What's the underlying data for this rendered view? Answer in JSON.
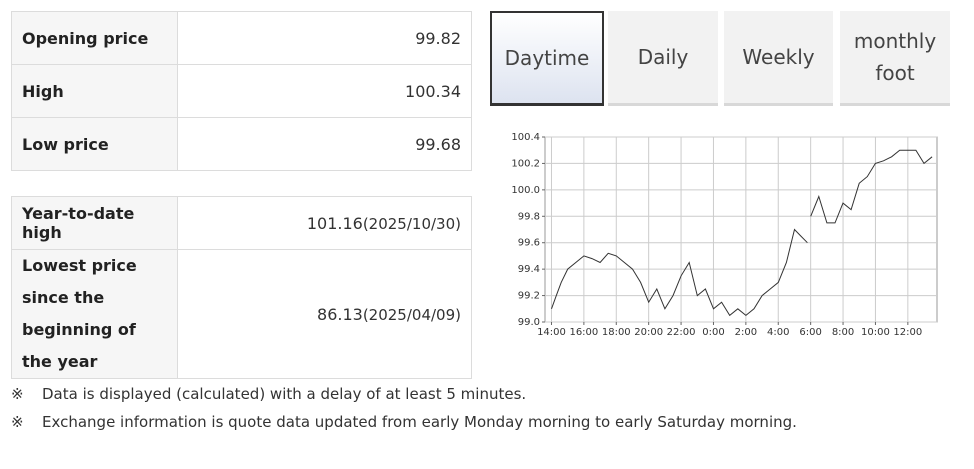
{
  "price_table": {
    "rows": [
      [
        "Opening price",
        "99.82"
      ],
      [
        "High",
        "100.34"
      ],
      [
        "Low price",
        "99.68"
      ]
    ]
  },
  "range_table": {
    "rows": [
      {
        "label": "Year-to-date high",
        "value": "101.16",
        "date": "(2025/10/30)"
      },
      {
        "label": "Lowest price since the beginning of the year",
        "value": "86.13",
        "date": "(2025/04/09)"
      }
    ]
  },
  "tabs": [
    "Daytime",
    "Daily",
    "Weekly",
    "monthly foot"
  ],
  "notes": [
    {
      "mark": "※",
      "text": "Data is displayed (calculated) with a delay of at least 5 minutes."
    },
    {
      "mark": "※",
      "text": "Exchange information is quote data updated from early Monday morning to early Saturday morning."
    }
  ],
  "chart_data": {
    "type": "line",
    "color": "#333333",
    "grid": true,
    "x": [
      0,
      0.3,
      0.6,
      1,
      1.5,
      2,
      2.5,
      3,
      3.5,
      4,
      4.5,
      5,
      5.5,
      6,
      6.5,
      7,
      7.5,
      8,
      8.5,
      9,
      9.5,
      10,
      10.5,
      11,
      11.5,
      12,
      12.5,
      13,
      13.5,
      14,
      14.5,
      15,
      15.4,
      15.8,
      15.9,
      16,
      16.5,
      17,
      17.5,
      18,
      18.5,
      19,
      19.5,
      20,
      20.5,
      21,
      21.5,
      22,
      22.5,
      23,
      23.5
    ],
    "values": [
      99.1,
      99.2,
      99.3,
      99.4,
      99.45,
      99.5,
      99.48,
      99.45,
      99.52,
      99.5,
      99.45,
      99.4,
      99.3,
      99.15,
      99.25,
      99.1,
      99.2,
      99.35,
      99.45,
      99.2,
      99.25,
      99.1,
      99.15,
      99.05,
      99.1,
      99.05,
      99.1,
      99.2,
      99.25,
      99.3,
      99.45,
      99.7,
      99.65,
      99.6,
      null,
      99.8,
      99.95,
      99.75,
      99.75,
      99.9,
      99.85,
      100.05,
      100.1,
      100.2,
      100.22,
      100.25,
      100.3,
      100.3,
      100.3,
      100.2,
      100.25
    ],
    "xlim": [
      -0.4,
      23.8
    ],
    "xticks": [
      {
        "value": 0,
        "label": "14:00"
      },
      {
        "value": 2,
        "label": "16:00"
      },
      {
        "value": 4,
        "label": "18:00"
      },
      {
        "value": 6,
        "label": "20:00"
      },
      {
        "value": 8,
        "label": "22:00"
      },
      {
        "value": 10,
        "label": "0:00"
      },
      {
        "value": 12,
        "label": "2:00"
      },
      {
        "value": 14,
        "label": "4:00"
      },
      {
        "value": 16,
        "label": "6:00"
      },
      {
        "value": 18,
        "label": "8:00"
      },
      {
        "value": 20,
        "label": "10:00"
      },
      {
        "value": 22,
        "label": "12:00"
      }
    ],
    "ylim": [
      99,
      100.4
    ],
    "yticks": [
      {
        "value": 99,
        "label": "99.0"
      },
      99.2,
      99.4,
      99.6,
      99.8,
      {
        "value": 100,
        "label": "100.0"
      },
      100.2,
      100.4
    ]
  }
}
